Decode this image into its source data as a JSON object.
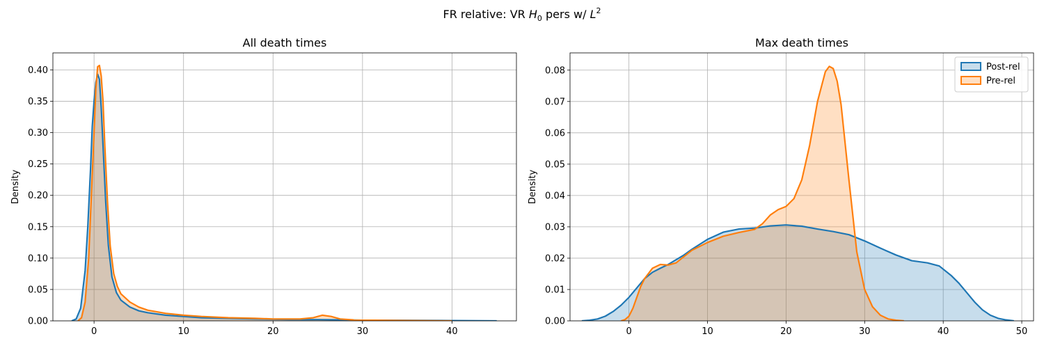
{
  "suptitle": {
    "prefix": "FR relative: VR ",
    "h": "H",
    "h_sub": "0",
    "middle": " pers w/ ",
    "l": "L",
    "l_sup": "2"
  },
  "colors": {
    "post": "#1f77b4",
    "pre": "#ff7f0e",
    "grid": "#b0b0b0",
    "overlap": "#c8b8a3"
  },
  "chart_data": [
    {
      "type": "area",
      "title": "All death times",
      "xlabel": "",
      "ylabel": "Density",
      "xlim": [
        -4.6,
        47.2
      ],
      "ylim": [
        0,
        0.427
      ],
      "xticks": [
        0,
        10,
        20,
        30,
        40
      ],
      "yticks": [
        0.0,
        0.05,
        0.1,
        0.15,
        0.2,
        0.25,
        0.3,
        0.35,
        0.4
      ],
      "ytick_labels": [
        "0.00",
        "0.05",
        "0.10",
        "0.15",
        "0.20",
        "0.25",
        "0.30",
        "0.35",
        "0.40"
      ],
      "grid": true,
      "series": [
        {
          "name": "Post-rel",
          "x": [
            -2.5,
            -2.0,
            -1.5,
            -1.0,
            -0.7,
            -0.4,
            -0.2,
            0.0,
            0.2,
            0.4,
            0.6,
            0.8,
            1.0,
            1.3,
            1.6,
            2.0,
            2.5,
            3.0,
            4.0,
            5.0,
            6.0,
            8.0,
            10.0,
            12.0,
            15.0,
            18.0,
            20.0,
            22.0,
            25.0,
            28.0,
            30.0,
            35.0,
            40.0,
            45.0
          ],
          "y": [
            0.0,
            0.003,
            0.02,
            0.08,
            0.15,
            0.24,
            0.31,
            0.35,
            0.38,
            0.393,
            0.385,
            0.34,
            0.28,
            0.19,
            0.12,
            0.07,
            0.045,
            0.033,
            0.022,
            0.016,
            0.013,
            0.009,
            0.007,
            0.005,
            0.004,
            0.003,
            0.0025,
            0.002,
            0.002,
            0.0015,
            0.001,
            0.0008,
            0.0005,
            0.0
          ]
        },
        {
          "name": "Pre-rel",
          "x": [
            -1.8,
            -1.4,
            -1.0,
            -0.6,
            -0.3,
            0.0,
            0.2,
            0.4,
            0.6,
            0.8,
            1.0,
            1.2,
            1.5,
            1.8,
            2.2,
            2.6,
            3.0,
            4.0,
            5.0,
            6.0,
            8.0,
            10.0,
            12.0,
            15.0,
            18.0,
            20.0,
            23.0,
            24.5,
            25.5,
            26.5,
            27.5,
            29.0,
            32.0,
            35.0,
            40.0
          ],
          "y": [
            0.0,
            0.005,
            0.03,
            0.1,
            0.2,
            0.3,
            0.37,
            0.405,
            0.407,
            0.39,
            0.35,
            0.28,
            0.19,
            0.12,
            0.075,
            0.055,
            0.043,
            0.03,
            0.022,
            0.017,
            0.012,
            0.009,
            0.007,
            0.005,
            0.004,
            0.003,
            0.003,
            0.005,
            0.009,
            0.007,
            0.003,
            0.0015,
            0.0008,
            0.0004,
            0.0
          ]
        }
      ]
    },
    {
      "type": "area",
      "title": "Max death times",
      "xlabel": "",
      "ylabel": "Density",
      "xlim": [
        -7.5,
        51.5
      ],
      "ylim": [
        0,
        0.0855
      ],
      "xticks": [
        0,
        10,
        20,
        30,
        40,
        50
      ],
      "yticks": [
        0.0,
        0.01,
        0.02,
        0.03,
        0.04,
        0.05,
        0.06,
        0.07,
        0.08
      ],
      "ytick_labels": [
        "0.00",
        "0.01",
        "0.02",
        "0.03",
        "0.04",
        "0.05",
        "0.06",
        "0.07",
        "0.08"
      ],
      "grid": true,
      "legend": "top-right",
      "series": [
        {
          "name": "Post-rel",
          "x": [
            -6.0,
            -5.0,
            -4.0,
            -3.0,
            -2.0,
            -1.0,
            0.0,
            1.0,
            2.0,
            3.0,
            4.0,
            5.0,
            6.0,
            7.0,
            8.0,
            10.0,
            12.0,
            14.0,
            16.0,
            18.0,
            20.0,
            22.0,
            24.0,
            26.0,
            28.0,
            30.0,
            32.0,
            34.0,
            36.0,
            38.0,
            39.5,
            41.0,
            42.0,
            43.0,
            44.0,
            45.0,
            46.0,
            47.0,
            48.0,
            49.0
          ],
          "y": [
            0.0,
            0.0002,
            0.0006,
            0.0015,
            0.003,
            0.005,
            0.0075,
            0.0105,
            0.0135,
            0.0155,
            0.0168,
            0.018,
            0.0195,
            0.021,
            0.0228,
            0.026,
            0.0283,
            0.0293,
            0.0296,
            0.0303,
            0.0306,
            0.0302,
            0.0293,
            0.0285,
            0.0275,
            0.0255,
            0.0232,
            0.021,
            0.0192,
            0.0185,
            0.0175,
            0.0145,
            0.012,
            0.009,
            0.006,
            0.0035,
            0.0018,
            0.0008,
            0.0003,
            0.0
          ]
        },
        {
          "name": "Pre-rel",
          "x": [
            -1.0,
            -0.5,
            0.0,
            0.5,
            1.0,
            1.5,
            2.0,
            3.0,
            4.0,
            5.0,
            6.0,
            7.0,
            8.0,
            10.0,
            12.0,
            14.0,
            16.0,
            17.0,
            18.0,
            19.0,
            20.0,
            21.0,
            22.0,
            23.0,
            24.0,
            25.0,
            25.5,
            26.0,
            26.5,
            27.0,
            28.0,
            29.0,
            30.0,
            31.0,
            32.0,
            33.0,
            34.0,
            35.0
          ],
          "y": [
            0.0,
            0.0004,
            0.0015,
            0.004,
            0.0075,
            0.011,
            0.0135,
            0.0168,
            0.018,
            0.0178,
            0.0185,
            0.0205,
            0.0225,
            0.025,
            0.027,
            0.0282,
            0.0292,
            0.031,
            0.0338,
            0.0355,
            0.0365,
            0.039,
            0.045,
            0.056,
            0.07,
            0.0795,
            0.0812,
            0.0805,
            0.0765,
            0.069,
            0.045,
            0.022,
            0.01,
            0.0045,
            0.0018,
            0.0006,
            0.0002,
            0.0
          ]
        }
      ]
    }
  ]
}
